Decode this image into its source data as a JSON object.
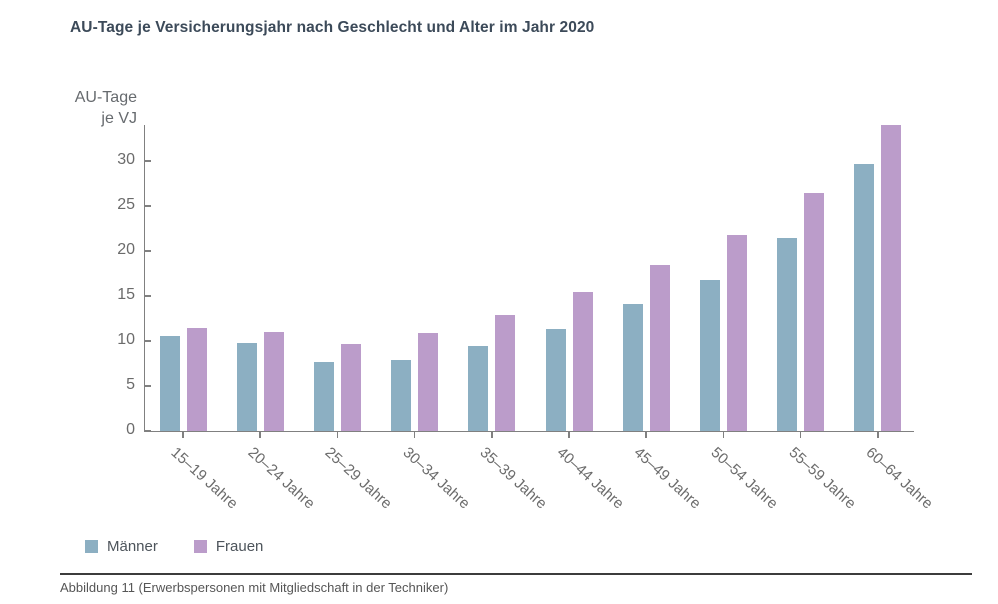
{
  "page": {
    "title": "AU-Tage je Versicherungsjahr nach Geschlecht und Alter im Jahr 2020",
    "caption": "Abbildung 11 (Erwerbspersonen mit Mitgliedschaft in der Techniker)"
  },
  "y_axis": {
    "label_line1": "AU-Tage",
    "label_line2": "je VJ"
  },
  "legend": [
    {
      "label": "Männer",
      "color": "#8cafc2"
    },
    {
      "label": "Frauen",
      "color": "#bb9cca"
    }
  ],
  "colors": {
    "maenner_bar": "#8cafc2",
    "frauen_bar": "#bb9cca",
    "title_text": "#3c4a59",
    "axis_line": "#808080",
    "axis_text": "#6b6b6b",
    "legend_text": "#4d545b",
    "caption_text": "#565656",
    "caption_rule": "#3c3c3c"
  },
  "chart_data": {
    "type": "bar",
    "title": "AU-Tage je Versicherungsjahr nach Geschlecht und Alter im Jahr 2020",
    "xlabel": "",
    "ylabel": "AU-Tage je VJ",
    "categories": [
      "15–19 Jahre",
      "20–24 Jahre",
      "25–29 Jahre",
      "30–34 Jahre",
      "35–39 Jahre",
      "40–44 Jahre",
      "45–49 Jahre",
      "50–54 Jahre",
      "55–59 Jahre",
      "60–64 Jahre"
    ],
    "series": [
      {
        "name": "Männer",
        "color": "#8cafc2",
        "values": [
          10.6,
          9.8,
          7.7,
          7.9,
          9.4,
          11.3,
          14.1,
          16.8,
          21.4,
          29.7
        ]
      },
      {
        "name": "Frauen",
        "color": "#bb9cca",
        "values": [
          11.5,
          11.0,
          9.7,
          10.9,
          12.9,
          15.5,
          18.5,
          21.8,
          26.5,
          34.0
        ]
      }
    ],
    "ylim": [
      0,
      34
    ],
    "yticks": [
      0,
      5,
      10,
      15,
      20,
      25,
      30
    ],
    "grid": false,
    "legend_position": "bottom-left",
    "caption": "Abbildung 11 (Erwerbspersonen mit Mitgliedschaft in der Techniker)"
  }
}
